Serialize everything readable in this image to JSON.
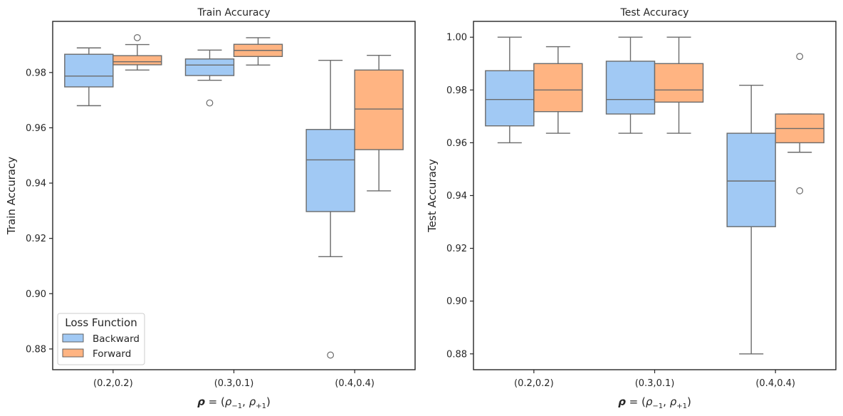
{
  "chart_data": [
    {
      "type": "boxplot",
      "title": "Train Accuracy",
      "xlabel": "ρ = (ρ₋₁, ρ₊₁)",
      "ylabel": "Train Accuracy",
      "ylim": [
        0.8725,
        0.9985
      ],
      "yticks": [
        "0.88",
        "0.90",
        "0.92",
        "0.94",
        "0.96",
        "0.98"
      ],
      "categories": [
        "(0.2,0.2)",
        "(0.3,0.1)",
        "(0.4,0.4)"
      ],
      "series": [
        {
          "name": "Backward",
          "color": "#a1c9f4",
          "boxes": [
            {
              "whislo": 0.968,
              "q1": 0.9748,
              "med": 0.9787,
              "q3": 0.9866,
              "whishi": 0.9889,
              "fliers": []
            },
            {
              "whislo": 0.9772,
              "q1": 0.9789,
              "med": 0.9827,
              "q3": 0.9849,
              "whishi": 0.9881,
              "fliers": [
                0.969
              ]
            },
            {
              "whislo": 0.9134,
              "q1": 0.9297,
              "med": 0.9484,
              "q3": 0.9594,
              "whishi": 0.9844,
              "fliers": [
                0.8778
              ]
            }
          ]
        },
        {
          "name": "Forward",
          "color": "#ffb482",
          "boxes": [
            {
              "whislo": 0.9809,
              "q1": 0.9828,
              "med": 0.9839,
              "q3": 0.9861,
              "whishi": 0.9901,
              "fliers": [
                0.9926
              ]
            },
            {
              "whislo": 0.9827,
              "q1": 0.9858,
              "med": 0.988,
              "q3": 0.9902,
              "whishi": 0.9926,
              "fliers": []
            },
            {
              "whislo": 0.9372,
              "q1": 0.9521,
              "med": 0.9668,
              "q3": 0.9809,
              "whishi": 0.9862,
              "fliers": []
            }
          ]
        }
      ],
      "legend": {
        "title": "Loss Function",
        "placement": "lower-left",
        "entries": [
          "Backward",
          "Forward"
        ]
      },
      "grid": false
    },
    {
      "type": "boxplot",
      "title": "Test Accuracy",
      "xlabel": "ρ = (ρ₋₁, ρ₊₁)",
      "ylabel": "Test Accuracy",
      "ylim": [
        0.874,
        1.006
      ],
      "yticks": [
        "0.88",
        "0.90",
        "0.92",
        "0.94",
        "0.96",
        "0.98",
        "1.00"
      ],
      "categories": [
        "(0.2,0.2)",
        "(0.3,0.1)",
        "(0.4,0.4)"
      ],
      "series": [
        {
          "name": "Backward",
          "color": "#a1c9f4",
          "boxes": [
            {
              "whislo": 0.96,
              "q1": 0.9664,
              "med": 0.9764,
              "q3": 0.9873,
              "whishi": 1.0,
              "fliers": []
            },
            {
              "whislo": 0.9636,
              "q1": 0.9709,
              "med": 0.9764,
              "q3": 0.9909,
              "whishi": 1.0,
              "fliers": []
            },
            {
              "whislo": 0.88,
              "q1": 0.9282,
              "med": 0.9455,
              "q3": 0.9636,
              "whishi": 0.9818,
              "fliers": []
            }
          ]
        },
        {
          "name": "Forward",
          "color": "#ffb482",
          "boxes": [
            {
              "whislo": 0.9636,
              "q1": 0.9718,
              "med": 0.98,
              "q3": 0.99,
              "whishi": 0.9964,
              "fliers": []
            },
            {
              "whislo": 0.9636,
              "q1": 0.9754,
              "med": 0.98,
              "q3": 0.99,
              "whishi": 1.0,
              "fliers": []
            },
            {
              "whislo": 0.9564,
              "q1": 0.96,
              "med": 0.9654,
              "q3": 0.9709,
              "whishi": 0.9709,
              "fliers": [
                0.9927,
                0.9418
              ]
            }
          ]
        }
      ],
      "grid": false
    }
  ]
}
